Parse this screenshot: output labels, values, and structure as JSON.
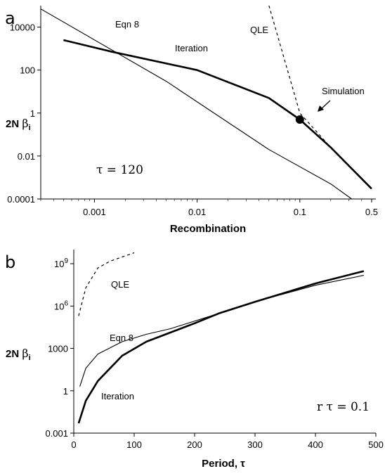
{
  "chart_data": [
    {
      "panel_label": "a",
      "type": "line",
      "xlabel": "Recombination",
      "ylabel": {
        "main": "2N β",
        "subscript": "i"
      },
      "x_scale": "log",
      "y_scale": "log",
      "xlim": [
        0.0003,
        0.55
      ],
      "ylim": [
        0.0001,
        100000
      ],
      "x_ticks": [
        {
          "value": 0.001,
          "label": "0.001"
        },
        {
          "value": 0.01,
          "label": "0.01"
        },
        {
          "value": 0.1,
          "label": "0.1"
        },
        {
          "value": 0.5,
          "label": "0.5"
        }
      ],
      "y_ticks": [
        {
          "value": 0.0001,
          "label": "0.0001"
        },
        {
          "value": 0.01,
          "label": "0.01"
        },
        {
          "value": 1,
          "label": "1"
        },
        {
          "value": 100,
          "label": "100"
        },
        {
          "value": 10000,
          "label": "10000"
        }
      ],
      "parameter_text": "τ = 120",
      "series": [
        {
          "name": "Eqn 8",
          "style": "thin",
          "x": [
            0.0003,
            0.005,
            0.05,
            0.2,
            0.32
          ],
          "y": [
            70000,
            30,
            0.02,
            0.0005,
            0.0001
          ]
        },
        {
          "name": "Iteration",
          "style": "thick",
          "x": [
            0.0005,
            0.0015,
            0.01,
            0.05,
            0.1,
            0.2,
            0.5
          ],
          "y": [
            2500,
            700,
            100,
            5,
            0.5,
            0.025,
            0.0003
          ]
        },
        {
          "name": "QLE",
          "style": "dashed",
          "x": [
            0.05,
            0.1,
            0.2
          ],
          "y": [
            100000,
            1,
            0.025
          ]
        },
        {
          "name": "Simulation",
          "style": "point",
          "x": [
            0.1
          ],
          "y": [
            0.5
          ]
        }
      ],
      "annotations": {
        "eqn8": "Eqn 8",
        "iteration": "Iteration",
        "qle": "QLE",
        "simulation": "Simulation"
      }
    },
    {
      "panel_label": "b",
      "type": "line",
      "xlabel": "Period, τ",
      "ylabel": {
        "main": "2N β",
        "subscript": "i"
      },
      "x_scale": "linear",
      "y_scale": "log",
      "xlim": [
        0,
        500
      ],
      "ylim": [
        0.001,
        10000000000
      ],
      "x_ticks": [
        {
          "value": 0,
          "label": "0"
        },
        {
          "value": 100,
          "label": "100"
        },
        {
          "value": 200,
          "label": "200"
        },
        {
          "value": 300,
          "label": "300"
        },
        {
          "value": 400,
          "label": "400"
        },
        {
          "value": 500,
          "label": "500"
        }
      ],
      "y_ticks": [
        {
          "value": 0.001,
          "label": "0.001",
          "base": "",
          "exp": ""
        },
        {
          "value": 1,
          "label": "1",
          "base": "",
          "exp": ""
        },
        {
          "value": 1000,
          "label": "1000",
          "base": "",
          "exp": ""
        },
        {
          "value": 1000000,
          "label": "",
          "base": "10",
          "exp": "6"
        },
        {
          "value": 1000000000,
          "label": "",
          "base": "10",
          "exp": "9"
        }
      ],
      "parameter_text": "r τ = 0.1",
      "series": [
        {
          "name": "Eqn 8",
          "style": "thin",
          "x": [
            10,
            20,
            40,
            80,
            120,
            160,
            240,
            300,
            400,
            480
          ],
          "y": [
            2,
            40,
            400,
            3000,
            10000,
            25000,
            300000,
            2000000,
            30000000,
            150000000
          ]
        },
        {
          "name": "Iteration",
          "style": "thick",
          "x": [
            8,
            20,
            40,
            80,
            120,
            200,
            240,
            300,
            400,
            480
          ],
          "y": [
            0.005,
            0.2,
            5,
            300,
            3000,
            60000,
            300000,
            2000000,
            40000000,
            300000000
          ]
        },
        {
          "name": "QLE",
          "style": "dashed",
          "x": [
            8,
            20,
            40,
            60,
            80,
            100
          ],
          "y": [
            200000,
            20000000,
            500000000,
            1500000000,
            3000000000,
            6000000000
          ]
        }
      ],
      "annotations": {
        "eqn8": "Eqn 8",
        "iteration": "Iteration",
        "qle": "QLE"
      }
    }
  ]
}
